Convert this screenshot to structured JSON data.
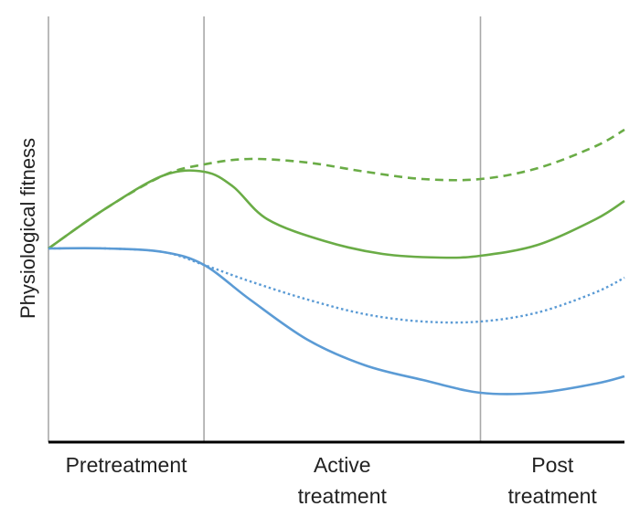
{
  "chart_data": {
    "type": "line",
    "title": "",
    "xlabel": "",
    "ylabel": "Physiological fitness",
    "xlim": [
      0,
      100
    ],
    "ylim": [
      0,
      100
    ],
    "grid": false,
    "legend": "none",
    "phase_boundaries": [
      0,
      27,
      75
    ],
    "phases": [
      {
        "label_lines": [
          "Pretreatment"
        ],
        "center": 13.5
      },
      {
        "label_lines": [
          "Active",
          "treatment"
        ],
        "center": 51
      },
      {
        "label_lines": [
          "Post",
          "treatment"
        ],
        "center": 87.5
      }
    ],
    "series": [
      {
        "name": "green-dashed",
        "color": "#6aac46",
        "style": "dashed",
        "points": [
          [
            0,
            52
          ],
          [
            10,
            63
          ],
          [
            20,
            72
          ],
          [
            27,
            75
          ],
          [
            35,
            76.5
          ],
          [
            45,
            75.5
          ],
          [
            55,
            73
          ],
          [
            65,
            71
          ],
          [
            75,
            71
          ],
          [
            85,
            74
          ],
          [
            95,
            80
          ],
          [
            100,
            84.5
          ]
        ]
      },
      {
        "name": "green-solid",
        "color": "#6aac46",
        "style": "solid",
        "points": [
          [
            0,
            52
          ],
          [
            10,
            63
          ],
          [
            20,
            72
          ],
          [
            27,
            73
          ],
          [
            32,
            69
          ],
          [
            38,
            60
          ],
          [
            48,
            54
          ],
          [
            58,
            50.5
          ],
          [
            68,
            49.5
          ],
          [
            75,
            50
          ],
          [
            85,
            53
          ],
          [
            95,
            60
          ],
          [
            100,
            65
          ]
        ]
      },
      {
        "name": "blue-dotted",
        "color": "#5b9bd5",
        "style": "dotted",
        "points": [
          [
            0,
            52
          ],
          [
            10,
            52
          ],
          [
            20,
            51
          ],
          [
            27,
            47.5
          ],
          [
            35,
            43
          ],
          [
            45,
            38
          ],
          [
            55,
            34
          ],
          [
            65,
            32
          ],
          [
            75,
            32
          ],
          [
            85,
            34.5
          ],
          [
            95,
            40
          ],
          [
            100,
            44
          ]
        ]
      },
      {
        "name": "blue-solid",
        "color": "#5b9bd5",
        "style": "solid",
        "points": [
          [
            0,
            52
          ],
          [
            10,
            52
          ],
          [
            20,
            51
          ],
          [
            27,
            47.5
          ],
          [
            35,
            38
          ],
          [
            45,
            27
          ],
          [
            55,
            20
          ],
          [
            65,
            16
          ],
          [
            75,
            12.5
          ],
          [
            85,
            12.5
          ],
          [
            95,
            15
          ],
          [
            100,
            17
          ]
        ]
      }
    ]
  }
}
